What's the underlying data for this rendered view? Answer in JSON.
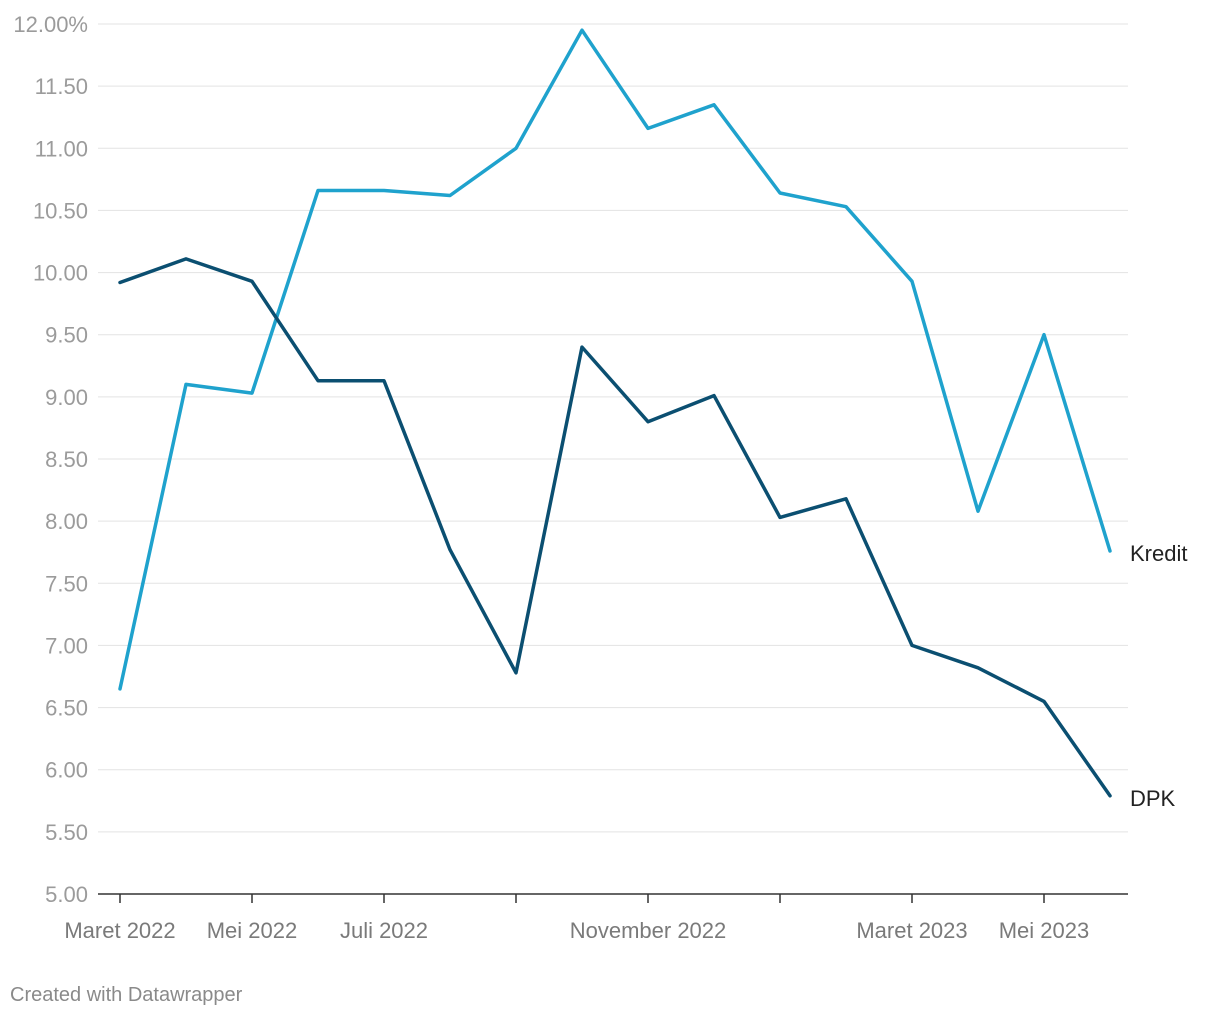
{
  "chart_data": {
    "type": "line",
    "x": [
      "2022-03",
      "2022-04",
      "2022-05",
      "2022-06",
      "2022-07",
      "2022-08",
      "2022-09",
      "2022-10",
      "2022-11",
      "2022-12",
      "2023-01",
      "2023-02",
      "2023-03",
      "2023-04",
      "2023-05",
      "2023-06"
    ],
    "x_tick_labels": [
      "Maret 2022",
      "Mei 2022",
      "Juli 2022",
      "November 2022",
      "Maret 2023",
      "Mei 2023"
    ],
    "y_tick_labels": [
      "12.00%",
      "11.50",
      "11.00",
      "10.50",
      "10.00",
      "9.50",
      "9.00",
      "8.50",
      "8.00",
      "7.50",
      "7.00",
      "6.50",
      "6.00",
      "5.50",
      "5.00"
    ],
    "ylim": [
      5.0,
      12.0
    ],
    "grid": true,
    "legend": "inline-right",
    "series": [
      {
        "name": "Kredit",
        "color": "#1fa2cd",
        "values": [
          6.65,
          9.1,
          9.03,
          10.66,
          10.66,
          10.62,
          11.0,
          11.95,
          11.16,
          11.35,
          10.64,
          10.53,
          9.93,
          8.08,
          9.5,
          7.76
        ]
      },
      {
        "name": "DPK",
        "color": "#0b4f71",
        "values": [
          9.92,
          10.11,
          9.93,
          9.13,
          9.13,
          7.77,
          6.78,
          9.4,
          8.8,
          9.01,
          8.03,
          8.18,
          7.0,
          6.82,
          6.55,
          5.79
        ]
      }
    ]
  },
  "footer": {
    "credit": "Created with Datawrapper"
  }
}
